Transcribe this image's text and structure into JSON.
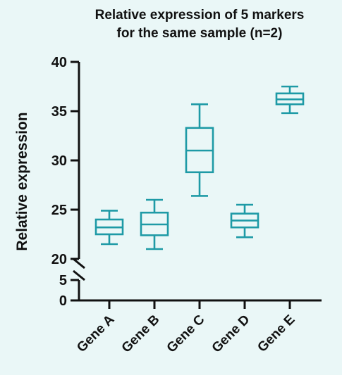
{
  "chart_data": {
    "type": "box",
    "title": [
      "Relative expression of 5 markers",
      "for the same sample (n=2)"
    ],
    "xlabel": "",
    "ylabel": "Relative expression",
    "categories": [
      "Gene A",
      "Gene B",
      "Gene C",
      "Gene D",
      "Gene E"
    ],
    "y_axis": {
      "broken": true,
      "lower_segment": {
        "range": [
          0,
          5
        ],
        "ticks": [
          0,
          5
        ]
      },
      "upper_segment": {
        "range": [
          20,
          40
        ],
        "ticks": [
          20,
          25,
          30,
          35,
          40
        ]
      },
      "tick_labels": [
        "0",
        "5",
        "20",
        "25",
        "30",
        "35",
        "40"
      ]
    },
    "box_color": "#1e9aa6",
    "boxes": [
      {
        "category": "Gene A",
        "min": 21.5,
        "q1": 22.5,
        "median": 23.2,
        "q3": 24.0,
        "max": 24.9
      },
      {
        "category": "Gene B",
        "min": 21.0,
        "q1": 22.4,
        "median": 23.5,
        "q3": 24.7,
        "max": 26.0
      },
      {
        "category": "Gene C",
        "min": 26.4,
        "q1": 28.8,
        "median": 31.0,
        "q3": 33.3,
        "max": 35.7
      },
      {
        "category": "Gene D",
        "min": 22.2,
        "q1": 23.2,
        "median": 23.9,
        "q3": 24.6,
        "max": 25.5
      },
      {
        "category": "Gene E",
        "min": 34.8,
        "q1": 35.7,
        "median": 36.2,
        "q3": 36.8,
        "max": 37.5
      }
    ]
  }
}
